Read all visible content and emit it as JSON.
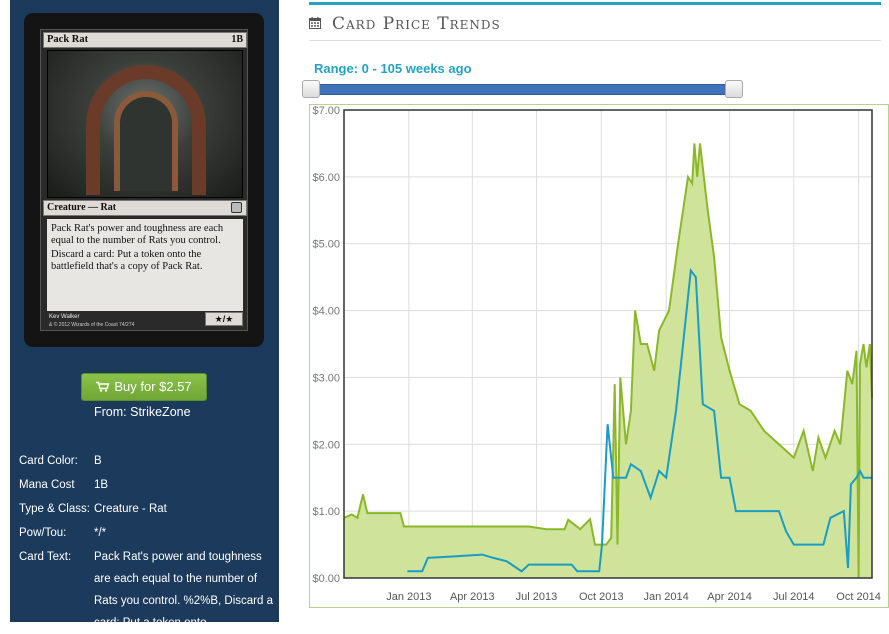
{
  "card": {
    "name": "Pack Rat",
    "mana_symbol": "1",
    "mana_color_symbol": "B",
    "type_line": "Creature — Rat",
    "rules_text_1": "Pack Rat's power and toughness are each equal to the number of Rats you control.",
    "rules_text_2": "Discard a card: Put a token onto the battlefield that's a copy of Pack Rat.",
    "power_toughness": "★/★",
    "artist": "Kev Walker",
    "copyright": "& © 2012 Wizards of the Coast 74/274"
  },
  "buy": {
    "label": "Buy for $2.57",
    "from": "From: StrikeZone"
  },
  "info": [
    {
      "label": "Card Color:",
      "value": "B"
    },
    {
      "label": "Mana Cost",
      "value": "1B"
    },
    {
      "label": "Type & Class:",
      "value": "Creature - Rat"
    },
    {
      "label": "Pow/Tou:",
      "value": "*/*"
    },
    {
      "label": "Card Text:",
      "value": "Pack Rat's power and toughness are each equal to the number of Rats you control. %2%B, Discard a card: Put a token onto"
    }
  ],
  "header": {
    "title": "Card Price Trends",
    "icon": "calendar-icon"
  },
  "range": {
    "label": "Range: 0 - 105 weeks ago",
    "min": 0,
    "max": 105,
    "low": 0,
    "high": 105
  },
  "colors": {
    "sidebar": "#1b3a5c",
    "accent": "#26a3c2",
    "buy_button": "#7cb342",
    "high_series": "#8ab82a",
    "high_fill": "#cfe39a",
    "low_series": "#1a9dc4"
  },
  "chart_data": {
    "type": "area",
    "x_start": "2012-10-01",
    "x_end": "2014-10-20",
    "ylim": [
      0,
      7
    ],
    "y_ticks": [
      "$0.00",
      "$1.00",
      "$2.00",
      "$3.00",
      "$4.00",
      "$5.00",
      "$6.00",
      "$7.00"
    ],
    "x_ticks": [
      {
        "date": "2013-01-01",
        "label": "Jan 2013"
      },
      {
        "date": "2013-04-01",
        "label": "Apr 2013"
      },
      {
        "date": "2013-07-01",
        "label": "Jul 2013"
      },
      {
        "date": "2013-10-01",
        "label": "Oct 2013"
      },
      {
        "date": "2014-01-01",
        "label": "Jan 2014"
      },
      {
        "date": "2014-04-01",
        "label": "Apr 2014"
      },
      {
        "date": "2014-07-01",
        "label": "Jul 2014"
      },
      {
        "date": "2014-10-01",
        "label": "Oct 2014"
      }
    ],
    "grid": true,
    "series": [
      {
        "key": "high",
        "points": [
          [
            "2012-10-01",
            0.9
          ],
          [
            "2012-10-12",
            0.95
          ],
          [
            "2012-10-20",
            0.9
          ],
          [
            "2012-10-28",
            1.25
          ],
          [
            "2012-11-03",
            0.97
          ],
          [
            "2012-12-20",
            0.97
          ],
          [
            "2012-12-25",
            0.77
          ],
          [
            "2013-06-20",
            0.77
          ],
          [
            "2013-07-15",
            0.73
          ],
          [
            "2013-08-10",
            0.73
          ],
          [
            "2013-08-15",
            0.87
          ],
          [
            "2013-09-01",
            0.73
          ],
          [
            "2013-09-15",
            0.88
          ],
          [
            "2013-09-22",
            0.5
          ],
          [
            "2013-10-08",
            0.5
          ],
          [
            "2013-10-15",
            0.6
          ],
          [
            "2013-10-20",
            2.9
          ],
          [
            "2013-10-24",
            0.5
          ],
          [
            "2013-10-28",
            3.0
          ],
          [
            "2013-11-05",
            2.0
          ],
          [
            "2013-11-12",
            2.5
          ],
          [
            "2013-11-18",
            4.0
          ],
          [
            "2013-11-26",
            3.5
          ],
          [
            "2013-12-05",
            3.5
          ],
          [
            "2013-12-15",
            3.1
          ],
          [
            "2013-12-22",
            3.7
          ],
          [
            "2014-01-05",
            4.0
          ],
          [
            "2014-01-18",
            5.0
          ],
          [
            "2014-02-01",
            6.0
          ],
          [
            "2014-02-07",
            5.9
          ],
          [
            "2014-02-10",
            6.5
          ],
          [
            "2014-02-14",
            6.0
          ],
          [
            "2014-02-18",
            6.5
          ],
          [
            "2014-03-01",
            5.5
          ],
          [
            "2014-03-10",
            4.8
          ],
          [
            "2014-03-20",
            3.6
          ],
          [
            "2014-04-01",
            3.1
          ],
          [
            "2014-04-15",
            2.6
          ],
          [
            "2014-05-01",
            2.5
          ],
          [
            "2014-05-20",
            2.2
          ],
          [
            "2014-06-10",
            2.0
          ],
          [
            "2014-07-01",
            1.8
          ],
          [
            "2014-07-15",
            2.2
          ],
          [
            "2014-07-28",
            1.6
          ],
          [
            "2014-08-05",
            2.1
          ],
          [
            "2014-08-15",
            1.8
          ],
          [
            "2014-08-28",
            2.2
          ],
          [
            "2014-09-05",
            2.0
          ],
          [
            "2014-09-15",
            3.1
          ],
          [
            "2014-09-22",
            2.9
          ],
          [
            "2014-09-28",
            3.4
          ],
          [
            "2014-10-01",
            0.0
          ],
          [
            "2014-10-03",
            3.2
          ],
          [
            "2014-10-08",
            3.5
          ],
          [
            "2014-10-12",
            3.15
          ],
          [
            "2014-10-17",
            3.5
          ],
          [
            "2014-10-20",
            2.7
          ]
        ]
      },
      {
        "key": "low",
        "points": [
          [
            "2012-12-30",
            0.1
          ],
          [
            "2013-01-20",
            0.1
          ],
          [
            "2013-01-28",
            0.3
          ],
          [
            "2013-03-01",
            0.32
          ],
          [
            "2013-04-15",
            0.35
          ],
          [
            "2013-05-01",
            0.3
          ],
          [
            "2013-05-20",
            0.25
          ],
          [
            "2013-06-10",
            0.1
          ],
          [
            "2013-06-20",
            0.2
          ],
          [
            "2013-08-20",
            0.2
          ],
          [
            "2013-08-28",
            0.1
          ],
          [
            "2013-09-28",
            0.1
          ],
          [
            "2013-10-02",
            0.5
          ],
          [
            "2013-10-10",
            2.3
          ],
          [
            "2013-10-18",
            1.5
          ],
          [
            "2013-11-05",
            1.5
          ],
          [
            "2013-11-12",
            1.7
          ],
          [
            "2013-11-26",
            1.6
          ],
          [
            "2013-12-10",
            1.2
          ],
          [
            "2013-12-22",
            1.6
          ],
          [
            "2014-01-01",
            1.5
          ],
          [
            "2014-01-15",
            2.5
          ],
          [
            "2014-01-28",
            3.8
          ],
          [
            "2014-02-05",
            4.6
          ],
          [
            "2014-02-12",
            4.5
          ],
          [
            "2014-02-22",
            2.6
          ],
          [
            "2014-03-10",
            2.5
          ],
          [
            "2014-03-20",
            1.5
          ],
          [
            "2014-04-01",
            1.5
          ],
          [
            "2014-04-10",
            1.0
          ],
          [
            "2014-06-10",
            1.0
          ],
          [
            "2014-06-20",
            0.7
          ],
          [
            "2014-07-01",
            0.5
          ],
          [
            "2014-08-12",
            0.5
          ],
          [
            "2014-08-22",
            0.9
          ],
          [
            "2014-09-10",
            1.0
          ],
          [
            "2014-09-16",
            0.15
          ],
          [
            "2014-09-20",
            1.4
          ],
          [
            "2014-09-28",
            1.5
          ],
          [
            "2014-10-03",
            1.6
          ],
          [
            "2014-10-08",
            1.5
          ],
          [
            "2014-10-20",
            1.5
          ]
        ]
      }
    ]
  }
}
